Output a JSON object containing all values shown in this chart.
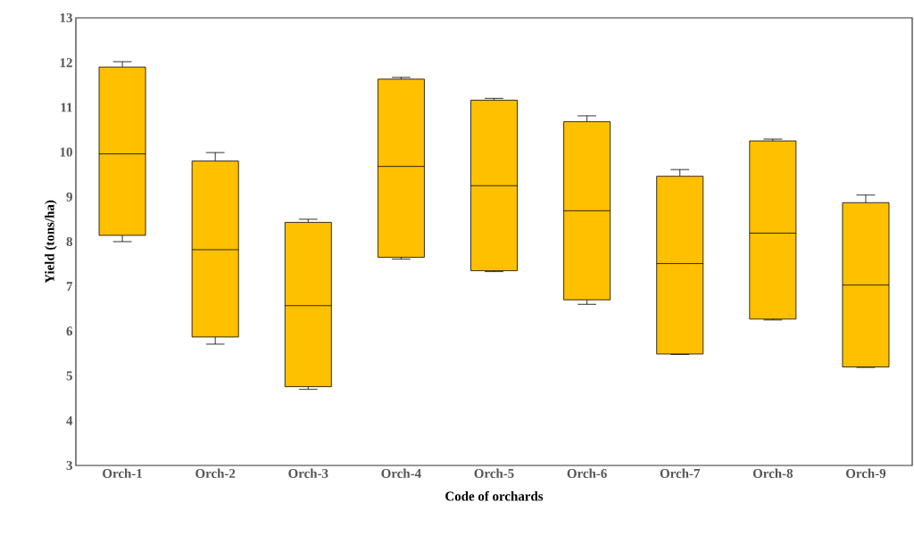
{
  "chart_data": {
    "type": "box",
    "xlabel": "Code of orchards",
    "ylabel": "Yield  (tons/ha)",
    "categories": [
      "Orch-1",
      "Orch-2",
      "Orch-3",
      "Orch-4",
      "Orch-5",
      "Orch-6",
      "Orch-7",
      "Orch-8",
      "Orch-9"
    ],
    "color": "#ffc000",
    "boxes": [
      {
        "low": 8.0,
        "q1": 8.14,
        "median": 9.96,
        "q3": 11.9,
        "high": 12.02
      },
      {
        "low": 5.71,
        "q1": 5.87,
        "median": 7.82,
        "q3": 9.8,
        "high": 9.99
      },
      {
        "low": 4.7,
        "q1": 4.76,
        "median": 6.57,
        "q3": 8.43,
        "high": 8.5
      },
      {
        "low": 7.61,
        "q1": 7.65,
        "median": 9.68,
        "q3": 11.63,
        "high": 11.67
      },
      {
        "low": 7.33,
        "q1": 7.35,
        "median": 9.25,
        "q3": 11.16,
        "high": 11.2
      },
      {
        "low": 6.6,
        "q1": 6.7,
        "median": 8.69,
        "q3": 10.68,
        "high": 10.81
      },
      {
        "low": 5.48,
        "q1": 5.49,
        "median": 7.51,
        "q3": 9.46,
        "high": 9.61
      },
      {
        "low": 6.25,
        "q1": 6.27,
        "median": 8.19,
        "q3": 10.25,
        "high": 10.29
      },
      {
        "low": 5.19,
        "q1": 5.2,
        "median": 7.03,
        "q3": 8.87,
        "high": 9.04
      }
    ],
    "ylim": [
      3,
      13
    ],
    "yticks": [
      3,
      4,
      5,
      6,
      7,
      8,
      9,
      10,
      11,
      12,
      13
    ],
    "grid": false
  }
}
